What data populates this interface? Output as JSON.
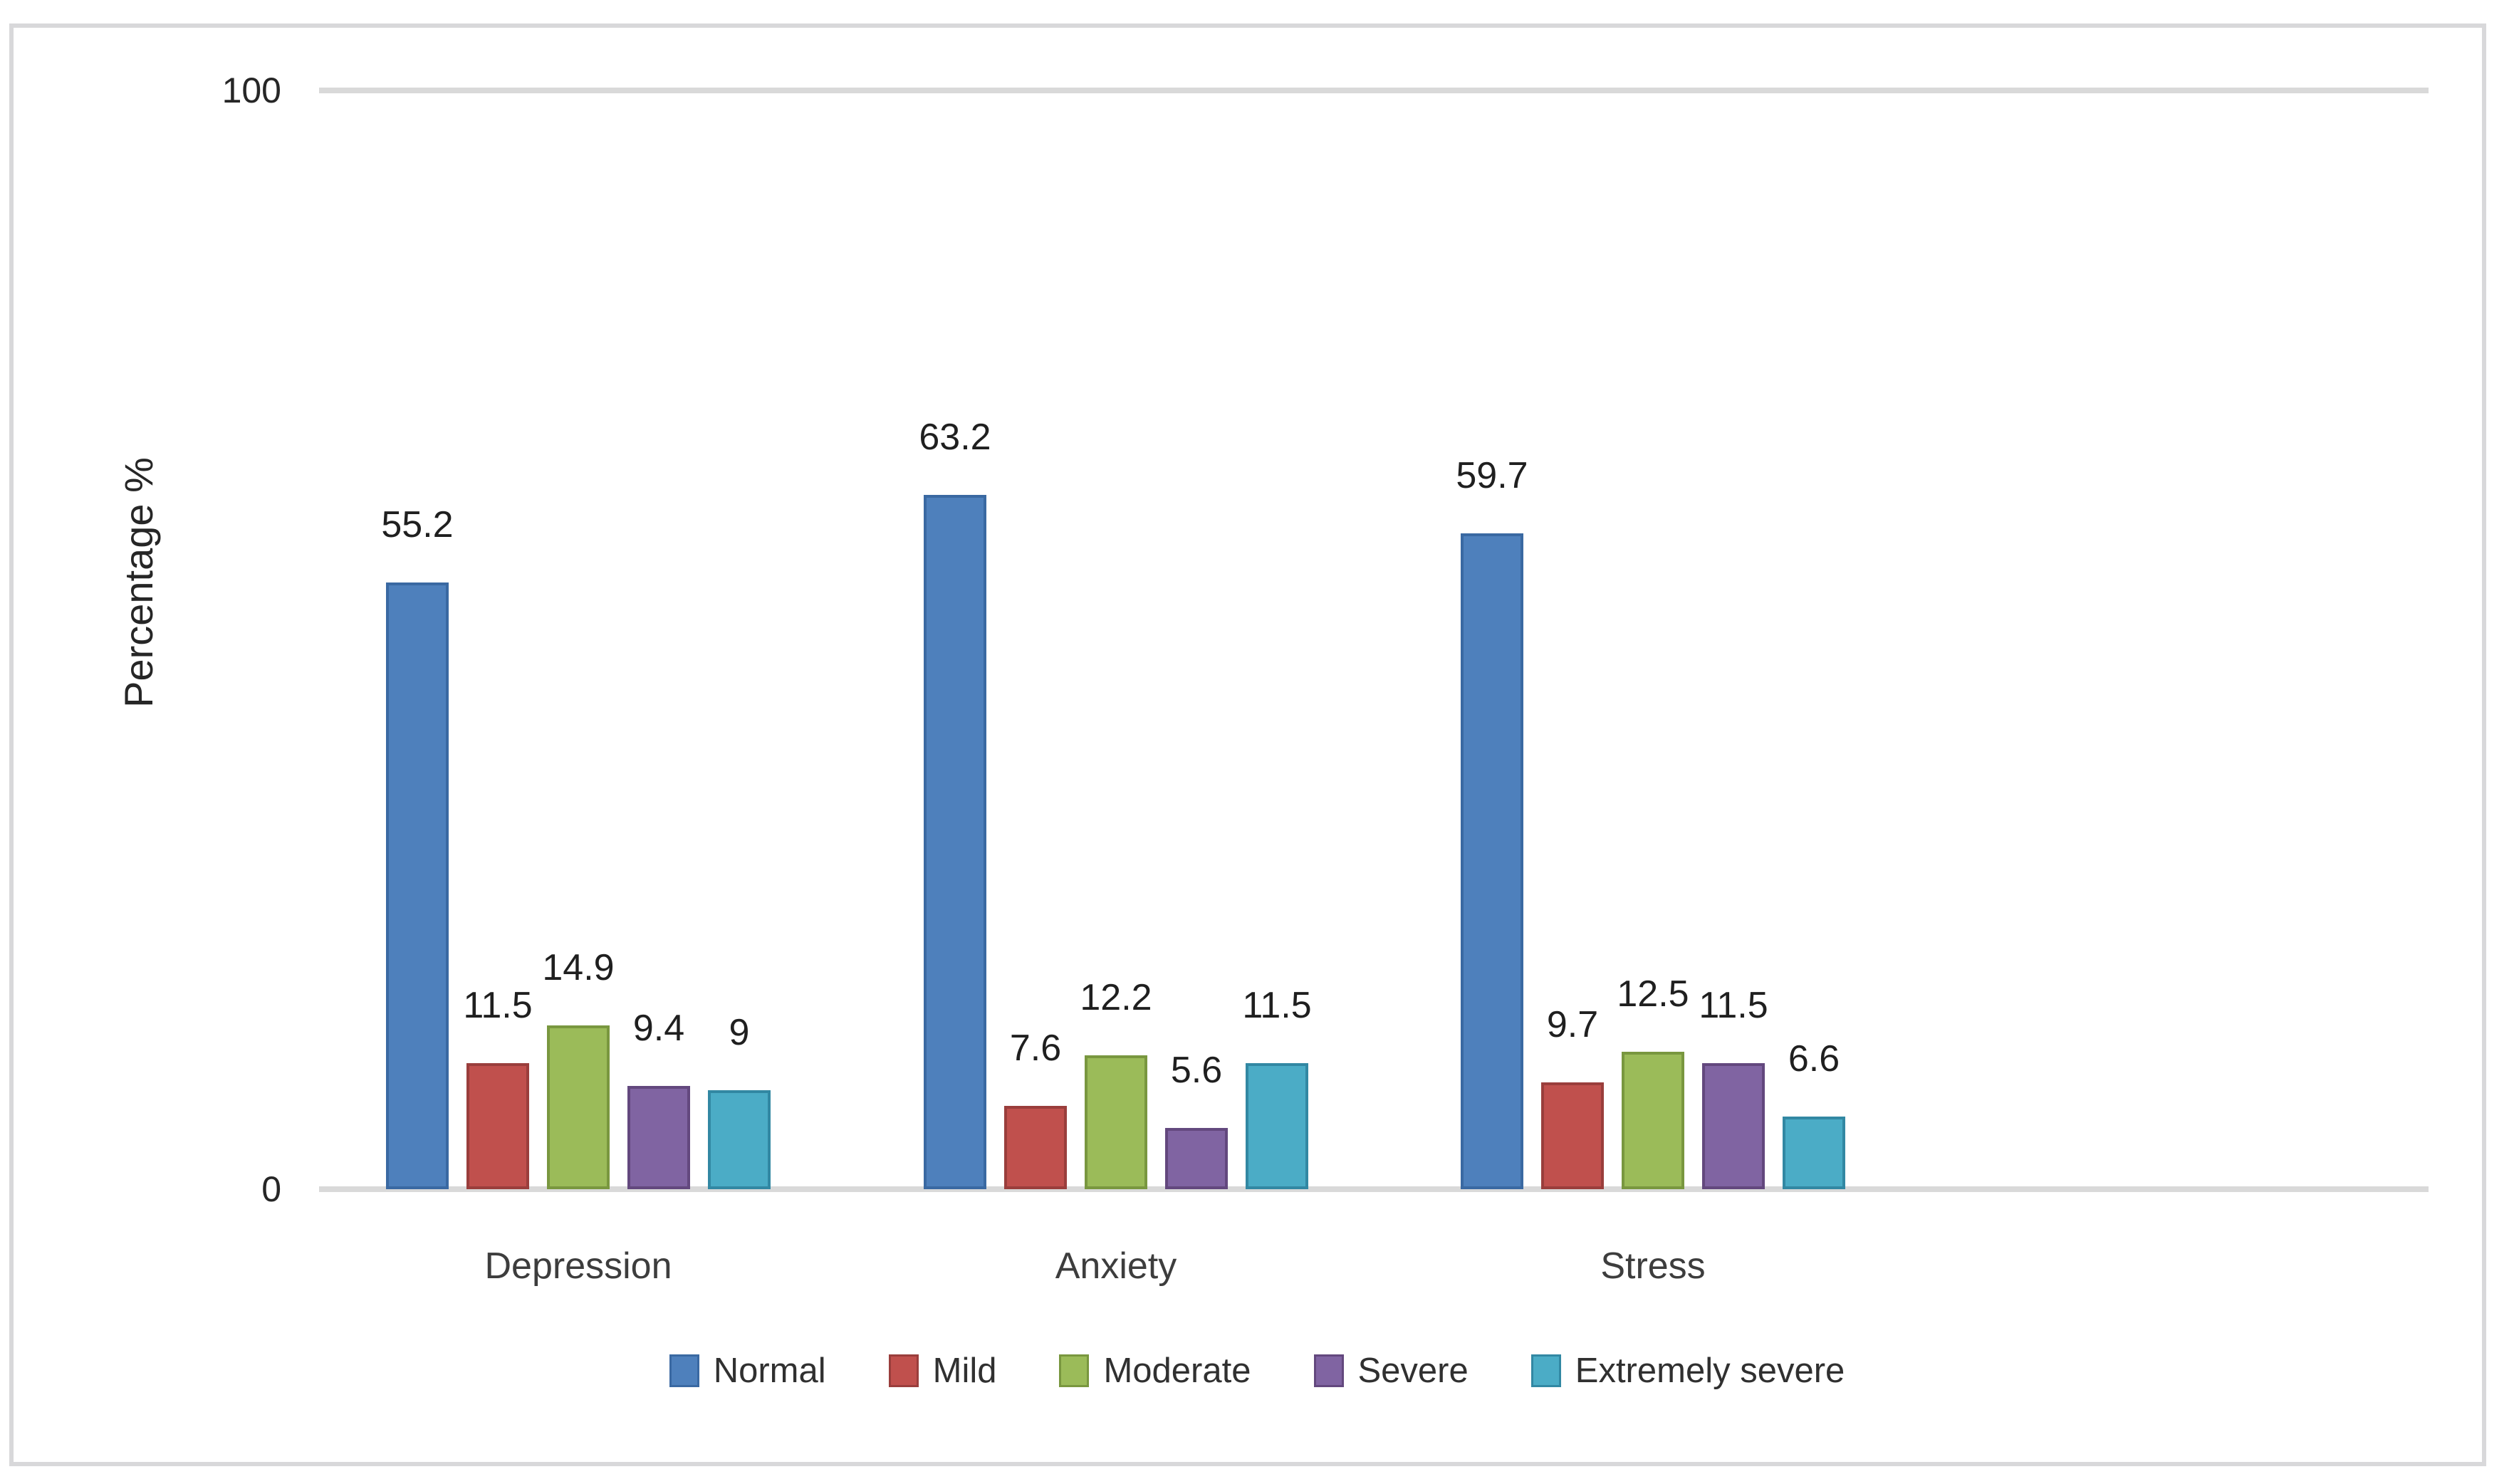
{
  "chart_data": {
    "type": "bar",
    "title": "",
    "ylabel": "Percentage %",
    "xlabel": "",
    "ylim": [
      0,
      100
    ],
    "ytick_labels": [
      "100",
      "0"
    ],
    "grid": "top-gridline-only",
    "legend_position": "bottom",
    "data_labels": "outside-end",
    "axis_line_color": "#d9d9d9",
    "categories": [
      "Depression",
      "Anxiety",
      "Stress"
    ],
    "series": [
      {
        "name": "Normal",
        "color": "#4e80bc",
        "border_color": "#3a69a2",
        "values": [
          55.2,
          63.2,
          59.7
        ]
      },
      {
        "name": "Mild",
        "color": "#c0504d",
        "border_color": "#9a3e3c",
        "values": [
          11.5,
          7.6,
          9.7
        ]
      },
      {
        "name": "Moderate",
        "color": "#9bbb59",
        "border_color": "#79973f",
        "values": [
          14.9,
          12.2,
          12.5
        ]
      },
      {
        "name": "Severe",
        "color": "#8064a2",
        "border_color": "#63487e",
        "values": [
          9.4,
          5.6,
          11.5
        ]
      },
      {
        "name": "Extremely severe",
        "color": "#4bacc6",
        "border_color": "#3288a3",
        "values": [
          9,
          11.5,
          6.6
        ]
      }
    ]
  }
}
